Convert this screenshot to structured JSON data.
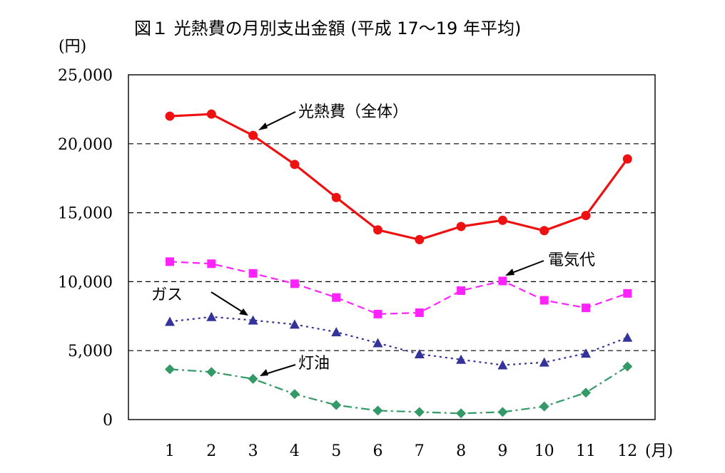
{
  "chart_data": {
    "type": "line",
    "title": "図１ 光熱費の月別支出金額 (平成 17〜19 年平均)",
    "ylabel": "(円)",
    "xunit": "(月)",
    "categories": [
      "1",
      "2",
      "3",
      "4",
      "5",
      "6",
      "7",
      "8",
      "9",
      "10",
      "11",
      "12"
    ],
    "ylim": [
      0,
      25000
    ],
    "yticks": [
      0,
      5000,
      10000,
      15000,
      20000,
      25000
    ],
    "ytick_labels": [
      "0",
      "5,000",
      "10,000",
      "15,000",
      "20,000",
      "25,000"
    ],
    "grid": "horizontal dashed",
    "series": [
      {
        "name": "光熱費（全体）",
        "color": "#ee1111",
        "marker": "circle",
        "dash": "solid",
        "values": [
          22000,
          22150,
          20600,
          18500,
          16100,
          13750,
          13050,
          14000,
          14450,
          13700,
          14800,
          18900
        ]
      },
      {
        "name": "電気代",
        "color": "#ff22ff",
        "marker": "square",
        "dash": "dashed",
        "values": [
          11450,
          11300,
          10600,
          9850,
          8850,
          7650,
          7750,
          9350,
          10050,
          8650,
          8100,
          9150
        ]
      },
      {
        "name": "ガス",
        "color": "#333399",
        "marker": "triangle",
        "dash": "dotted",
        "values": [
          7100,
          7450,
          7200,
          6900,
          6350,
          5550,
          4750,
          4350,
          3950,
          4150,
          4800,
          5950
        ]
      },
      {
        "name": "灯油",
        "color": "#339966",
        "marker": "diamond",
        "dash": "dashdot",
        "values": [
          3650,
          3450,
          2950,
          1850,
          1050,
          650,
          550,
          450,
          550,
          950,
          1950,
          3850
        ]
      }
    ],
    "annotations": [
      "光熱費（全体）",
      "電気代",
      "ガス",
      "灯油"
    ]
  }
}
